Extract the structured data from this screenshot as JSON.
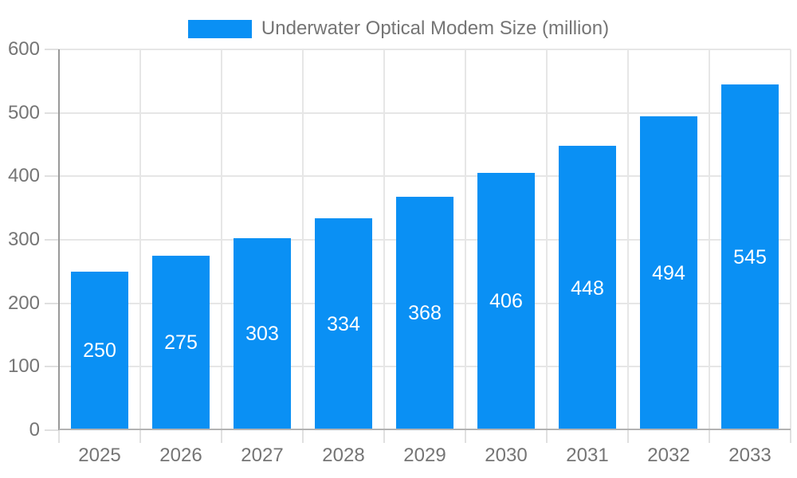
{
  "legend": {
    "label": "Underwater Optical Modem Size (million)"
  },
  "chart_data": {
    "type": "bar",
    "title": "Underwater Optical Modem Size (million)",
    "series_name": "Underwater Optical Modem Size (million)",
    "categories": [
      "2025",
      "2026",
      "2027",
      "2028",
      "2029",
      "2030",
      "2031",
      "2032",
      "2033"
    ],
    "values": [
      250,
      275,
      303,
      334,
      368,
      406,
      448,
      494,
      545
    ],
    "xlabel": "",
    "ylabel": "",
    "ylim": [
      0,
      600
    ],
    "yticks": [
      0,
      100,
      200,
      300,
      400,
      500,
      600
    ],
    "grid": true,
    "legend_position": "top",
    "bar_labels_visible": true,
    "colors": {
      "bar": "#0A90F4",
      "bar_label_text": "#ffffff",
      "axis_text": "#757575",
      "gridline": "#e6e6e6",
      "axis_line": "#999999",
      "baseline": "#b3b3b3",
      "tick": "#e0e0e0",
      "background": "#ffffff"
    }
  }
}
